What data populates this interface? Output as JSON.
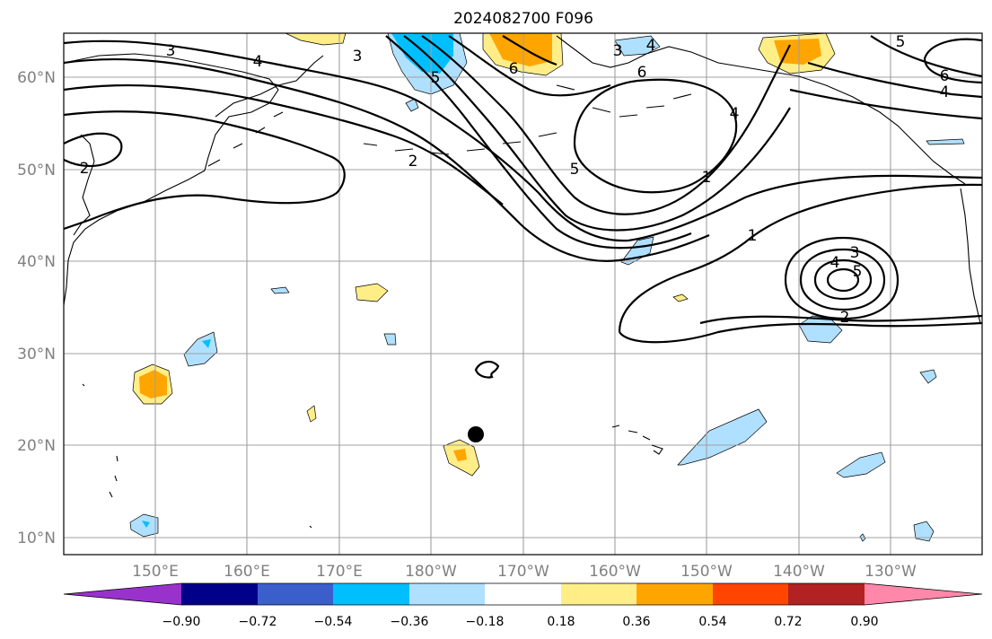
{
  "title": "2024082700 F096",
  "lat_labels": [
    "60°N",
    "50°N",
    "40°N",
    "30°N",
    "20°N",
    "10°N"
  ],
  "lon_labels": [
    "150°E",
    "160°E",
    "170°E",
    "180°W",
    "170°W",
    "160°W",
    "150°W",
    "140°W",
    "130°W"
  ],
  "contour_labels": [
    "3",
    "4",
    "3",
    "5",
    "6",
    "3",
    "4",
    "6",
    "6",
    "4",
    "5",
    "2",
    "2",
    "1",
    "1",
    "3",
    "4",
    "5",
    "2",
    "4",
    "5"
  ],
  "colorbar": {
    "tick_labels": [
      "−0.90",
      "−0.72",
      "−0.54",
      "−0.36",
      "−0.18",
      "0.18",
      "0.36",
      "0.54",
      "0.72",
      "0.90"
    ],
    "colors": [
      "#9932cc",
      "#00008b",
      "#3a5fcd",
      "#00bfff",
      "#b0e0ff",
      "#ffffff",
      "#ffee88",
      "#ffa500",
      "#ff4500",
      "#b22222",
      "#ff88aa"
    ]
  },
  "marker": {
    "label": "storm-center",
    "color": "#000000"
  }
}
